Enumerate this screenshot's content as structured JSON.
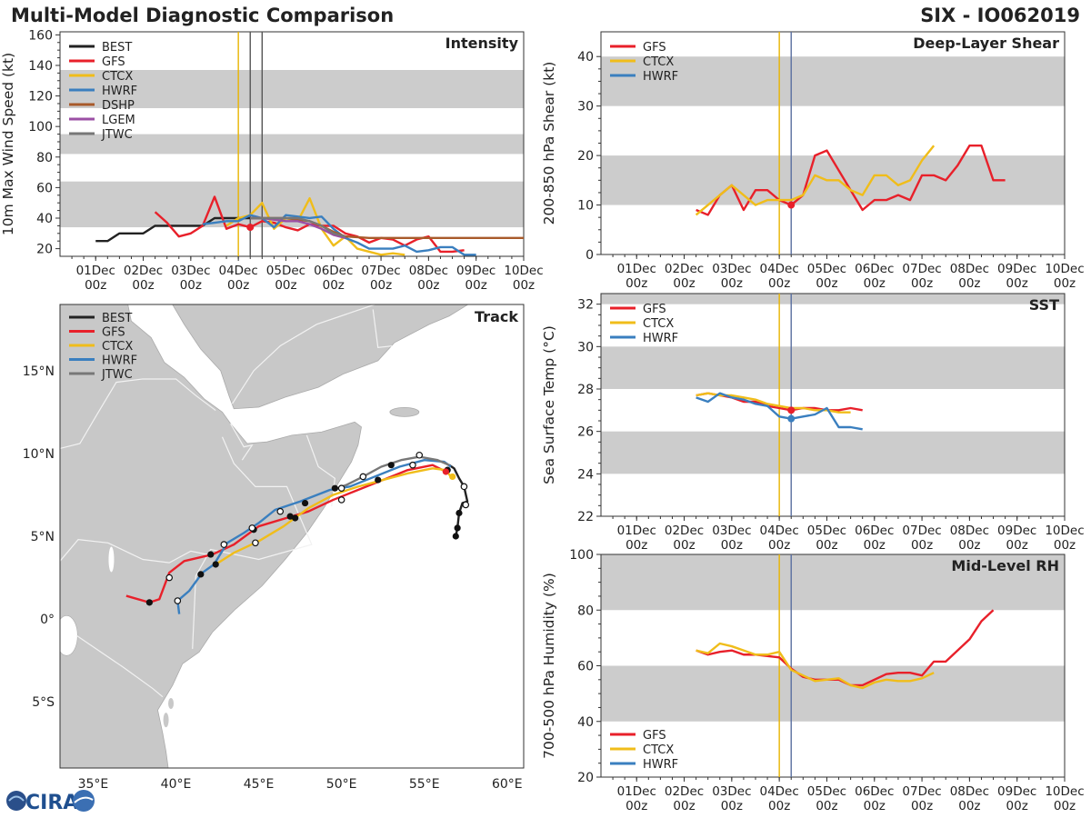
{
  "header": {
    "title": "Multi-Model Diagnostic Comparison",
    "storm_id": "SIX - IO062019"
  },
  "colors": {
    "BEST": "#222222",
    "GFS": "#e8202a",
    "CTCX": "#f0bd1a",
    "HWRF": "#3a7fbf",
    "DSHP": "#a85a2a",
    "LGEM": "#9b4fa5",
    "JTWC": "#777777",
    "band": "#cccccc",
    "vline_yellow": "#e8b400",
    "vline_blue": "#5a6fa0"
  },
  "time_axis_labels": [
    "01Dec\n00z",
    "02Dec\n00z",
    "03Dec\n00z",
    "04Dec\n00z",
    "05Dec\n00z",
    "06Dec\n00z",
    "07Dec\n00z",
    "08Dec\n00z",
    "09Dec\n00z",
    "10Dec\n00z"
  ],
  "logo": {
    "text": "CIRA"
  },
  "chart_data": [
    {
      "id": "intensity",
      "type": "line",
      "title": "Intensity",
      "ylabel": "10m Max Wind Speed (kt)",
      "xlim": [
        0,
        9.75
      ],
      "ylim": [
        15,
        162
      ],
      "yticks": [
        20,
        40,
        60,
        80,
        100,
        120,
        140,
        160
      ],
      "bands": [
        [
          34,
          64
        ],
        [
          82,
          95
        ],
        [
          112,
          137
        ]
      ],
      "vlines": [
        {
          "x": 3.75,
          "color": "vline_yellow"
        },
        {
          "x": 4.0,
          "color": "#555555"
        },
        {
          "x": 4.25,
          "color": "#555555"
        }
      ],
      "legend": [
        "BEST",
        "GFS",
        "CTCX",
        "HWRF",
        "DSHP",
        "LGEM",
        "JTWC"
      ],
      "series": [
        {
          "name": "BEST",
          "x": [
            0.75,
            1,
            1.25,
            1.5,
            1.75,
            2,
            2.25,
            2.5,
            2.75,
            3,
            3.25,
            3.5,
            3.75,
            4,
            4.25
          ],
          "y": [
            25,
            25,
            30,
            30,
            30,
            35,
            35,
            35,
            35,
            35,
            40,
            40,
            40,
            40,
            40
          ]
        },
        {
          "name": "GFS",
          "x": [
            2,
            2.25,
            2.5,
            2.75,
            3,
            3.25,
            3.5,
            3.75,
            4,
            4.25,
            4.5,
            4.75,
            5,
            5.25,
            5.5,
            5.75,
            6,
            6.25,
            6.5,
            6.75,
            7,
            7.25,
            7.5,
            7.75,
            8,
            8.25,
            8.5
          ],
          "y": [
            44,
            37,
            28,
            30,
            35,
            54,
            33,
            36,
            34,
            38,
            37,
            34,
            32,
            36,
            35,
            35,
            30,
            28,
            24,
            27,
            26,
            22,
            26,
            28,
            18,
            18,
            19
          ]
        },
        {
          "name": "CTCX",
          "x": [
            3.5,
            3.75,
            4,
            4.25,
            4.5,
            4.75,
            5,
            5.25,
            5.5,
            5.75,
            6,
            6.25,
            6.5,
            6.75,
            7,
            7.25
          ],
          "y": [
            35,
            40,
            42,
            50,
            33,
            40,
            38,
            53,
            33,
            22,
            28,
            20,
            18,
            16,
            17,
            16
          ]
        },
        {
          "name": "HWRF",
          "x": [
            3,
            3.25,
            3.5,
            3.75,
            4,
            4.25,
            4.5,
            4.75,
            5,
            5.25,
            5.5,
            5.75,
            6,
            6.25,
            6.5,
            6.75,
            7,
            7.25,
            7.5,
            7.75,
            8,
            8.25,
            8.5,
            8.75
          ],
          "y": [
            36,
            37,
            38,
            38,
            42,
            40,
            34,
            42,
            41,
            40,
            41,
            33,
            27,
            24,
            20,
            20,
            20,
            22,
            18,
            19,
            21,
            21,
            16,
            16
          ]
        },
        {
          "name": "DSHP",
          "x": [
            4,
            4.25,
            4.5,
            4.75,
            5,
            5.25,
            5.5,
            5.75,
            6,
            6.5,
            7,
            7.5,
            8,
            8.5,
            9,
            9.75
          ],
          "y": [
            40,
            40,
            40,
            40,
            39,
            38,
            35,
            31,
            28,
            27,
            27,
            27,
            27,
            27,
            27,
            27
          ]
        },
        {
          "name": "LGEM",
          "x": [
            4,
            4.25,
            4.5,
            4.75,
            5,
            5.25,
            5.5,
            5.75,
            6
          ],
          "y": [
            40,
            40,
            39,
            38,
            38,
            36,
            33,
            29,
            27
          ]
        },
        {
          "name": "JTWC",
          "x": [
            4,
            4.25,
            4.5,
            4.75,
            5,
            5.25,
            5.5,
            5.75,
            6
          ],
          "y": [
            40,
            40,
            40,
            40,
            40,
            38,
            35,
            30,
            28
          ]
        }
      ],
      "markers": [
        {
          "series": "GFS",
          "x": 4,
          "y": 34
        }
      ]
    },
    {
      "id": "track",
      "type": "map",
      "title": "Track",
      "xlim": [
        33,
        61
      ],
      "ylim": [
        -9,
        19
      ],
      "xticks": [
        35,
        40,
        45,
        50,
        55,
        60
      ],
      "xtick_labels": [
        "35°E",
        "40°E",
        "45°E",
        "50°E",
        "55°E",
        "60°E"
      ],
      "yticks": [
        -5,
        0,
        5,
        10,
        15
      ],
      "ytick_labels": [
        "5°S",
        "0°",
        "5°N",
        "10°N",
        "15°N"
      ],
      "legend": [
        "BEST",
        "GFS",
        "CTCX",
        "HWRF",
        "JTWC"
      ],
      "series": [
        {
          "name": "BEST",
          "lon": [
            56.9,
            57.0,
            57.1,
            57.3,
            57.6,
            57.4,
            57.1,
            56.8,
            56.5
          ],
          "lat": [
            5.0,
            5.5,
            6.4,
            7.0,
            7.1,
            8.0,
            8.5,
            9.1,
            9.3
          ]
        },
        {
          "name": "GFS",
          "lon": [
            37,
            38.4,
            39,
            39.6,
            40.5,
            42.2,
            43.5,
            45,
            47,
            48,
            49.5,
            51,
            52.5,
            54,
            55.5,
            56.3
          ],
          "lat": [
            1.4,
            1.0,
            1.2,
            2.8,
            3.5,
            3.9,
            4.5,
            5.6,
            6.2,
            6.5,
            7.2,
            7.8,
            8.4,
            9.0,
            9.3,
            8.9
          ]
        },
        {
          "name": "CTCX",
          "lon": [
            42.4,
            43.5,
            45,
            46.5,
            48,
            49.5,
            51,
            52.5,
            54,
            55.5,
            56.3,
            56.6
          ],
          "lat": [
            3.3,
            4.0,
            4.7,
            5.6,
            6.7,
            7.5,
            8.0,
            8.4,
            8.8,
            9.1,
            9.0,
            8.6
          ]
        },
        {
          "name": "HWRF",
          "lon": [
            40.2,
            40.1,
            40.8,
            41.6,
            42.3,
            43.1,
            44.1,
            45,
            46,
            47.5,
            49.3,
            50.5,
            52,
            53.5,
            55,
            56.2,
            56.6
          ],
          "lat": [
            0.3,
            1.1,
            1.7,
            2.8,
            3.3,
            4.6,
            5.2,
            5.8,
            6.6,
            7.1,
            7.8,
            8.0,
            8.6,
            9.2,
            9.6,
            9.5,
            9.2
          ]
        },
        {
          "name": "JTWC",
          "lon": [
            49.5,
            50.3,
            51.3,
            52.4,
            53.6,
            54.7,
            55.8,
            56.5
          ],
          "lat": [
            7.8,
            8.1,
            8.6,
            9.2,
            9.6,
            9.8,
            9.6,
            9.3
          ]
        }
      ],
      "filled_points": [
        [
          38.4,
          1.0
        ],
        [
          41.5,
          2.7
        ],
        [
          42.4,
          3.3
        ],
        [
          42.1,
          3.9
        ],
        [
          44.7,
          5.4
        ],
        [
          46.9,
          6.2
        ],
        [
          47.2,
          6.1
        ],
        [
          47.8,
          7.0
        ],
        [
          49.6,
          7.9
        ],
        [
          52.2,
          8.4
        ],
        [
          53.0,
          9.3
        ],
        [
          56.4,
          9.0
        ],
        [
          56.9,
          5.0
        ],
        [
          57.0,
          5.5
        ],
        [
          57.1,
          6.4
        ]
      ],
      "open_points": [
        [
          39.6,
          2.5
        ],
        [
          40.1,
          1.1
        ],
        [
          42.9,
          4.5
        ],
        [
          44.6,
          5.5
        ],
        [
          44.8,
          4.6
        ],
        [
          46.3,
          6.5
        ],
        [
          50,
          7.9
        ],
        [
          50,
          7.2
        ],
        [
          51.3,
          8.6
        ],
        [
          54.3,
          9.3
        ],
        [
          54.7,
          9.9
        ],
        [
          57.4,
          8.0
        ],
        [
          57.5,
          6.9
        ]
      ]
    },
    {
      "id": "shear",
      "type": "line",
      "title": "Deep-Layer Shear",
      "ylabel": "200-850 hPa Shear (kt)",
      "xlim": [
        0,
        9.75
      ],
      "ylim": [
        0,
        45
      ],
      "yticks": [
        0,
        10,
        20,
        30,
        40
      ],
      "bands": [
        [
          10,
          20
        ],
        [
          30,
          40
        ]
      ],
      "vlines": [
        {
          "x": 3.75,
          "color": "vline_yellow"
        },
        {
          "x": 4.0,
          "color": "vline_blue"
        }
      ],
      "legend": [
        "GFS",
        "CTCX",
        "HWRF"
      ],
      "series": [
        {
          "name": "GFS",
          "x": [
            2,
            2.25,
            2.5,
            2.75,
            3,
            3.25,
            3.5,
            3.75,
            4,
            4.25,
            4.5,
            4.75,
            5,
            5.25,
            5.5,
            5.75,
            6,
            6.25,
            6.5,
            6.75,
            7,
            7.25,
            7.5,
            7.75,
            8,
            8.25,
            8.5
          ],
          "y": [
            9,
            8,
            12,
            14,
            9,
            13,
            13,
            11,
            10,
            12,
            20,
            21,
            17,
            13,
            9,
            11,
            11,
            12,
            11,
            16,
            16,
            15,
            18,
            22,
            22,
            15,
            15
          ]
        },
        {
          "name": "CTCX",
          "x": [
            2,
            2.25,
            2.5,
            2.75,
            3,
            3.25,
            3.5,
            3.75,
            4,
            4.25,
            4.5,
            4.75,
            5,
            5.25,
            5.5,
            5.75,
            6,
            6.25,
            6.5,
            6.75,
            7
          ],
          "y": [
            8,
            10,
            12,
            14,
            12,
            10,
            11,
            11,
            11,
            12,
            16,
            15,
            15,
            13,
            12,
            16,
            16,
            14,
            15,
            19,
            22
          ]
        },
        {
          "name": "HWRF",
          "x": [],
          "y": []
        }
      ],
      "markers": [
        {
          "series": "GFS",
          "x": 4,
          "y": 10
        }
      ]
    },
    {
      "id": "sst",
      "type": "line",
      "title": "SST",
      "ylabel": "Sea Surface Temp (°C)",
      "xlim": [
        0,
        9.75
      ],
      "ylim": [
        22,
        32.5
      ],
      "yticks": [
        22,
        24,
        26,
        28,
        30,
        32
      ],
      "bands": [
        [
          24,
          26
        ],
        [
          28,
          30
        ],
        [
          32,
          32.5
        ]
      ],
      "vlines": [
        {
          "x": 3.75,
          "color": "vline_yellow"
        },
        {
          "x": 4.0,
          "color": "vline_blue"
        }
      ],
      "legend": [
        "GFS",
        "CTCX",
        "HWRF"
      ],
      "series": [
        {
          "name": "GFS",
          "x": [
            2,
            2.25,
            2.5,
            2.75,
            3,
            3.25,
            3.5,
            3.75,
            4,
            4.25,
            4.5,
            4.75,
            5,
            5.25,
            5.5
          ],
          "y": [
            27.7,
            27.8,
            27.7,
            27.6,
            27.4,
            27.4,
            27.2,
            27.1,
            27.0,
            27.1,
            27.1,
            27.0,
            27.0,
            27.1,
            27.0
          ]
        },
        {
          "name": "CTCX",
          "x": [
            2,
            2.25,
            2.5,
            2.75,
            3,
            3.25,
            3.5,
            3.75,
            4,
            4.25,
            4.5,
            4.75,
            5,
            5.25
          ],
          "y": [
            27.7,
            27.8,
            27.7,
            27.7,
            27.6,
            27.5,
            27.3,
            27.2,
            27.1,
            27.1,
            27.0,
            27.0,
            26.9,
            26.9
          ]
        },
        {
          "name": "HWRF",
          "x": [
            2,
            2.25,
            2.5,
            2.75,
            3,
            3.25,
            3.5,
            3.75,
            4,
            4.25,
            4.5,
            4.75,
            5,
            5.25,
            5.5
          ],
          "y": [
            27.6,
            27.4,
            27.8,
            27.6,
            27.5,
            27.3,
            27.2,
            26.7,
            26.6,
            26.7,
            26.8,
            27.1,
            26.2,
            26.2,
            26.1
          ]
        }
      ],
      "markers": [
        {
          "series": "GFS",
          "x": 4,
          "y": 27.0
        },
        {
          "series": "HWRF",
          "x": 4,
          "y": 26.6
        }
      ]
    },
    {
      "id": "rh",
      "type": "line",
      "title": "Mid-Level RH",
      "ylabel": "700-500 hPa Humidity (%)",
      "xlim": [
        0,
        9.75
      ],
      "ylim": [
        20,
        100
      ],
      "yticks": [
        20,
        40,
        60,
        80,
        100
      ],
      "bands": [
        [
          40,
          60
        ],
        [
          80,
          100
        ]
      ],
      "vlines": [
        {
          "x": 3.75,
          "color": "vline_yellow"
        },
        {
          "x": 4.0,
          "color": "vline_blue"
        }
      ],
      "legend": [
        "GFS",
        "CTCX",
        "HWRF"
      ],
      "series": [
        {
          "name": "GFS",
          "x": [
            2,
            2.25,
            2.5,
            2.75,
            3,
            3.25,
            3.5,
            3.75,
            4,
            4.25,
            4.5,
            4.75,
            5,
            5.25,
            5.5,
            5.75,
            6,
            6.25,
            6.5,
            6.75,
            7,
            7.25,
            7.5,
            7.75,
            8,
            8.25
          ],
          "y": [
            65.5,
            64,
            65,
            65.5,
            64,
            64,
            63.5,
            63,
            59,
            56,
            55,
            55,
            55,
            53,
            53,
            55,
            57,
            57.5,
            57.5,
            56.5,
            61.5,
            61.5,
            65.5,
            69.5,
            76,
            80
          ]
        },
        {
          "name": "CTCX",
          "x": [
            2,
            2.25,
            2.5,
            2.75,
            3,
            3.25,
            3.5,
            3.75,
            4,
            4.25,
            4.5,
            4.75,
            5,
            5.25,
            5.5,
            5.75,
            6,
            6.25,
            6.5,
            6.75,
            7
          ],
          "y": [
            65.5,
            64.5,
            68,
            67,
            65.5,
            64,
            64,
            65,
            58.5,
            56.5,
            54.5,
            55,
            55.5,
            53,
            52,
            54,
            55,
            54.5,
            54.5,
            55.5,
            57.5
          ]
        },
        {
          "name": "HWRF",
          "x": [],
          "y": []
        }
      ],
      "markers": []
    }
  ]
}
